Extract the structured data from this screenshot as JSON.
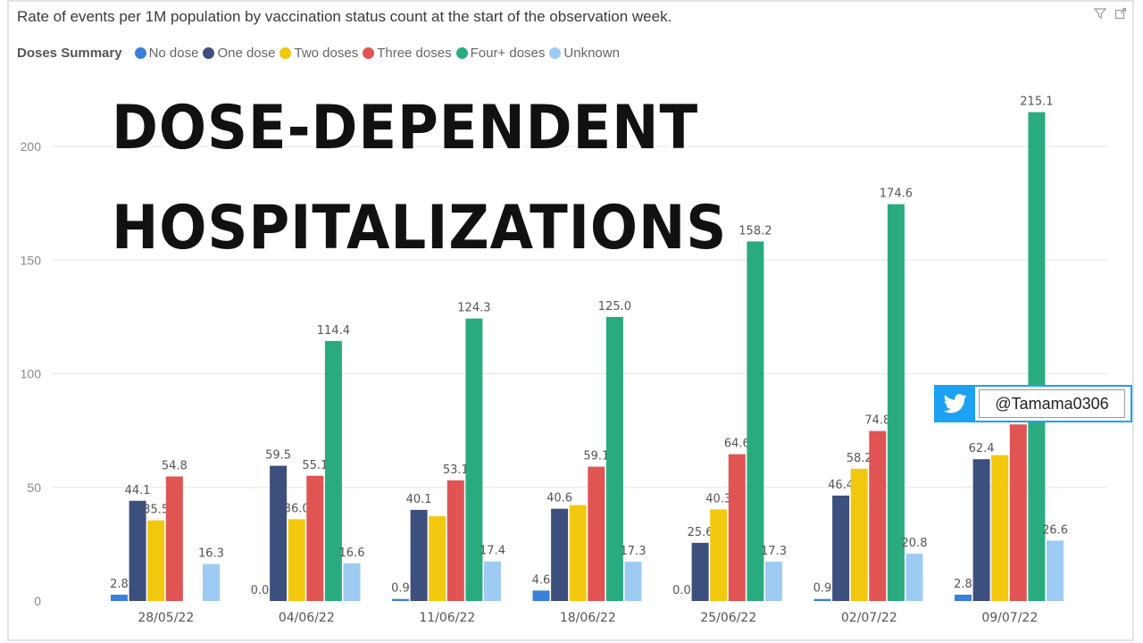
{
  "chart_data": {
    "type": "bar",
    "title": "Rate of events per 1M population by vaccination status count at the start of the observation week.",
    "legend_title": "Doses Summary",
    "categories": [
      "28/05/22",
      "04/06/22",
      "11/06/22",
      "18/06/22",
      "25/06/22",
      "02/07/22",
      "09/07/22"
    ],
    "series": [
      {
        "name": "No dose",
        "color": "#3a7fd9",
        "values": [
          2.8,
          0.0,
          0.9,
          4.6,
          0.0,
          0.9,
          2.8
        ],
        "labels": [
          "2.8",
          "0.0",
          "0.9",
          "4.6",
          "0.0",
          "0.9",
          "2.8"
        ]
      },
      {
        "name": "One dose",
        "color": "#3d4f7c",
        "values": [
          44.1,
          59.5,
          40.1,
          40.6,
          25.6,
          46.4,
          62.4
        ],
        "labels": [
          "44.1",
          "59.5",
          "40.1",
          "40.6",
          "25.6",
          "46.4",
          "62.4"
        ]
      },
      {
        "name": "Two doses",
        "color": "#f2c80f",
        "values": [
          35.5,
          36.0,
          37.3,
          42.2,
          40.3,
          58.2,
          64.2
        ],
        "labels": [
          "35.5",
          "36.0",
          "",
          "",
          "40.3",
          "58.2",
          ""
        ]
      },
      {
        "name": "Three doses",
        "color": "#e05454",
        "values": [
          54.8,
          55.1,
          53.1,
          59.1,
          64.6,
          74.8,
          77.7
        ],
        "labels": [
          "54.8",
          "55.1",
          "53.1",
          "59.1",
          "64.6",
          "74.8",
          ""
        ]
      },
      {
        "name": "Four+ doses",
        "color": "#2aab7f",
        "values": [
          null,
          114.4,
          124.3,
          125.0,
          158.2,
          174.6,
          215.1
        ],
        "labels": [
          "",
          "114.4",
          "124.3",
          "125.0",
          "158.2",
          "174.6",
          "215.1"
        ]
      },
      {
        "name": "Unknown",
        "color": "#9ecbf2",
        "values": [
          16.3,
          16.6,
          17.4,
          17.3,
          17.3,
          20.8,
          26.6
        ],
        "labels": [
          "16.3",
          "16.6",
          "17.4",
          "17.3",
          "17.3",
          "20.8",
          "26.6"
        ]
      }
    ],
    "y_ticks": [
      0,
      50,
      100,
      150,
      200
    ],
    "ylim": [
      0,
      230
    ],
    "grid": true
  },
  "overlay": {
    "line1": "DOSE-DEPENDENT",
    "line2": "HOSPITALIZATIONS"
  },
  "twitter": {
    "handle": "@Tamama0306"
  },
  "icons": {
    "filter": "filter-icon",
    "expand": "expand-icon",
    "twitter": "twitter-bird-icon"
  }
}
